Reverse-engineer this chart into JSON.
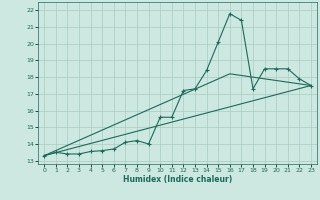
{
  "xlabel": "Humidex (Indice chaleur)",
  "ylabel": "",
  "bg_color": "#cce8e0",
  "line_color": "#1a6b5a",
  "grid_color": "#aaccbf",
  "xlim": [
    -0.5,
    23.5
  ],
  "ylim": [
    12.8,
    22.5
  ],
  "xticks": [
    0,
    1,
    2,
    3,
    4,
    5,
    6,
    7,
    8,
    9,
    10,
    11,
    12,
    13,
    14,
    15,
    16,
    17,
    18,
    19,
    20,
    21,
    22,
    23
  ],
  "yticks": [
    13,
    14,
    15,
    16,
    17,
    18,
    19,
    20,
    21,
    22
  ],
  "line1_x": [
    0,
    1,
    2,
    3,
    4,
    5,
    6,
    7,
    8,
    9,
    10,
    11,
    12,
    13,
    14,
    15,
    16,
    17,
    18,
    19,
    20,
    21,
    22,
    23
  ],
  "line1_y": [
    13.3,
    13.5,
    13.4,
    13.4,
    13.55,
    13.6,
    13.7,
    14.1,
    14.2,
    14.0,
    15.6,
    15.6,
    17.2,
    17.3,
    18.4,
    20.1,
    21.8,
    21.4,
    17.3,
    18.5,
    18.5,
    18.5,
    17.9,
    17.5
  ],
  "line2_x": [
    0,
    23
  ],
  "line2_y": [
    13.3,
    17.5
  ],
  "line3_x": [
    0,
    16,
    23
  ],
  "line3_y": [
    13.3,
    18.2,
    17.5
  ]
}
